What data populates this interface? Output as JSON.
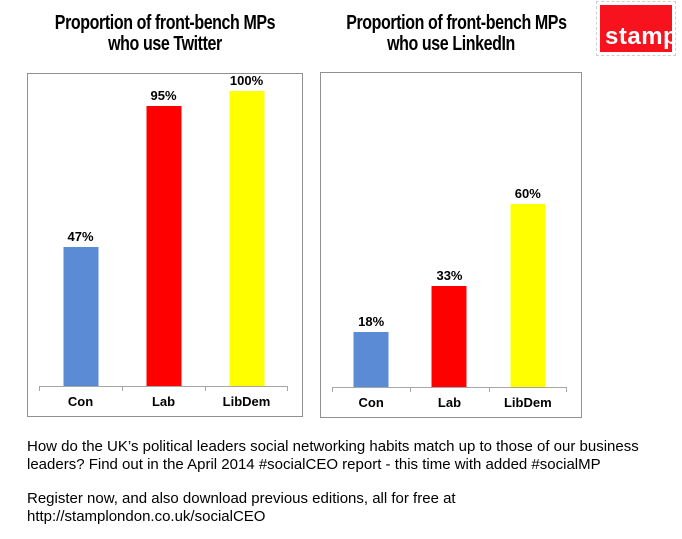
{
  "logo": {
    "text": "stamp",
    "color": "#F7121D",
    "text_color": "#FFFFFF"
  },
  "colors": {
    "bar_blue": "#5B8BD5",
    "bar_red": "#FF0000",
    "bar_yellow": "#FFFF00",
    "axis_gray": "#A6A6A6",
    "plot_border_gray": "#919191"
  },
  "chart_data": [
    {
      "type": "bar",
      "title": "Proportion of front-bench MPs who use Twitter",
      "title_lines": [
        "Proportion of front-bench MPs",
        "who use Twitter"
      ],
      "categories": [
        "Con",
        "Lab",
        "LibDem"
      ],
      "values": [
        47,
        95,
        100
      ],
      "value_labels": [
        "47%",
        "95%",
        "100%"
      ],
      "bar_colors": [
        "#5B8BD5",
        "#FF0000",
        "#FFFF00"
      ],
      "xlabel": "",
      "ylabel": "",
      "ylim": [
        0,
        105
      ],
      "grid": false,
      "legend": "none"
    },
    {
      "type": "bar",
      "title": "Proportion of front-bench MPs who use LinkedIn",
      "title_lines": [
        "Proportion of front-bench MPs",
        "who use LinkedIn"
      ],
      "categories": [
        "Con",
        "Lab",
        "LibDem"
      ],
      "values": [
        18,
        33,
        60
      ],
      "value_labels": [
        "18%",
        "33%",
        "60%"
      ],
      "bar_colors": [
        "#5B8BD5",
        "#FF0000",
        "#FFFF00"
      ],
      "xlabel": "",
      "ylabel": "",
      "ylim": [
        0,
        105
      ],
      "grid": false,
      "legend": "none"
    }
  ],
  "footer": {
    "paragraph1": "How do the UK’s political leaders social networking habits match up to those of our business leaders? Find out in the April 2014 #socialCEO report - this time with added #socialMP",
    "paragraph2": "Register now, and also download previous editions, all for free at http://stamplondon.co.uk/socialCEO"
  }
}
